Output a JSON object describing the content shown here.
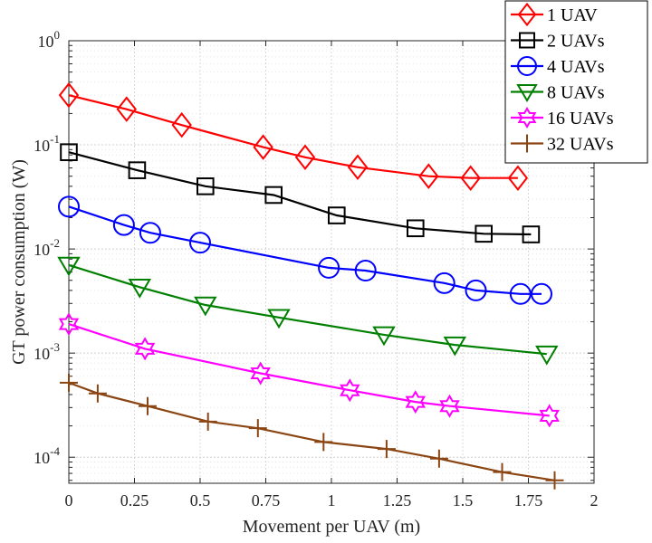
{
  "chart_data": {
    "type": "line",
    "xlabel": "Movement per UAV (m)",
    "ylabel": "GT power consumption (W)",
    "xlim": [
      0,
      2
    ],
    "ylim_log10": [
      -4.25,
      0
    ],
    "yscale": "log",
    "grid": true,
    "minor_grid": true,
    "legend_position": "top-right",
    "x_ticks": [
      {
        "value": 0,
        "label": "0"
      },
      {
        "value": 0.25,
        "label": "0.25"
      },
      {
        "value": 0.5,
        "label": "0.5"
      },
      {
        "value": 0.75,
        "label": "0.75"
      },
      {
        "value": 1,
        "label": "1"
      },
      {
        "value": 1.25,
        "label": "1.25"
      },
      {
        "value": 1.5,
        "label": "1.5"
      },
      {
        "value": 1.75,
        "label": "1.75"
      },
      {
        "value": 2,
        "label": "2"
      }
    ],
    "y_ticks": [
      {
        "exp": 0,
        "base": "10",
        "sup": "0"
      },
      {
        "exp": -1,
        "base": "10",
        "sup": "-1"
      },
      {
        "exp": -2,
        "base": "10",
        "sup": "-2"
      },
      {
        "exp": -3,
        "base": "10",
        "sup": "-3"
      },
      {
        "exp": -4,
        "base": "10",
        "sup": "-4"
      }
    ],
    "series": [
      {
        "name": "1 UAV",
        "color": "#ff0000",
        "marker": "diamond",
        "x": [
          0,
          0.22,
          0.43,
          0.74,
          0.9,
          1.1,
          1.37,
          1.53,
          1.71
        ],
        "y": [
          0.3,
          0.22,
          0.155,
          0.095,
          0.076,
          0.061,
          0.05,
          0.048,
          0.048
        ]
      },
      {
        "name": "2 UAVs",
        "color": "#000000",
        "marker": "square",
        "x": [
          0,
          0.26,
          0.52,
          0.78,
          1.02,
          1.32,
          1.58,
          1.76
        ],
        "y": [
          0.085,
          0.057,
          0.04,
          0.033,
          0.021,
          0.0158,
          0.014,
          0.0138
        ]
      },
      {
        "name": "4 UAVs",
        "color": "#0000ff",
        "marker": "circle",
        "x": [
          0,
          0.21,
          0.31,
          0.5,
          0.99,
          1.13,
          1.43,
          1.55,
          1.72,
          1.8
        ],
        "y": [
          0.0255,
          0.017,
          0.0143,
          0.0115,
          0.0066,
          0.0062,
          0.0047,
          0.004,
          0.0037,
          0.0037
        ]
      },
      {
        "name": "8 UAVs",
        "color": "#008000",
        "marker": "triangle-down",
        "x": [
          0,
          0.27,
          0.52,
          0.8,
          1.2,
          1.47,
          1.82
        ],
        "y": [
          0.007,
          0.0043,
          0.0029,
          0.0022,
          0.0015,
          0.0012,
          0.00098
        ]
      },
      {
        "name": "16 UAVs",
        "color": "#ff00ff",
        "marker": "hexagram",
        "x": [
          0,
          0.29,
          0.73,
          1.07,
          1.32,
          1.45,
          1.83
        ],
        "y": [
          0.0019,
          0.0011,
          0.00064,
          0.00044,
          0.00034,
          0.00031,
          0.00025
        ]
      },
      {
        "name": "32 UAVs",
        "color": "#8b4513",
        "marker": "plus",
        "x": [
          0,
          0.11,
          0.3,
          0.53,
          0.72,
          0.97,
          1.21,
          1.41,
          1.65,
          1.85
        ],
        "y": [
          0.00052,
          0.00041,
          0.00031,
          0.00022,
          0.00019,
          0.00014,
          0.00012,
          9.7e-05,
          7.2e-05,
          6e-05
        ]
      }
    ]
  }
}
